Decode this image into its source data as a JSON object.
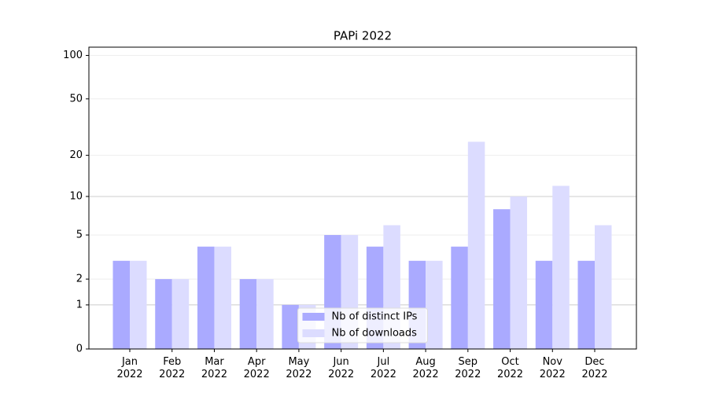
{
  "chart_data": {
    "type": "bar",
    "title": "PAPi 2022",
    "categories": [
      "Jan\n2022",
      "Feb\n2022",
      "Mar\n2022",
      "Apr\n2022",
      "May\n2022",
      "Jun\n2022",
      "Jul\n2022",
      "Aug\n2022",
      "Sep\n2022",
      "Oct\n2022",
      "Nov\n2022",
      "Dec\n2022"
    ],
    "series": [
      {
        "name": "Nb of distinct IPs",
        "color": "#aaaaff",
        "values": [
          3,
          2,
          4,
          2,
          1,
          5,
          4,
          3,
          4,
          8,
          3,
          3
        ]
      },
      {
        "name": "Nb of downloads",
        "color": "#dcdcff",
        "values": [
          3,
          2,
          4,
          2,
          1,
          5,
          6,
          3,
          25,
          10,
          12,
          6
        ]
      }
    ],
    "yscale": "symlog",
    "ylim": [
      0,
      114
    ],
    "yticks": [
      0,
      1,
      2,
      5,
      10,
      20,
      50,
      100
    ],
    "grid": true,
    "legend": "lower center"
  }
}
